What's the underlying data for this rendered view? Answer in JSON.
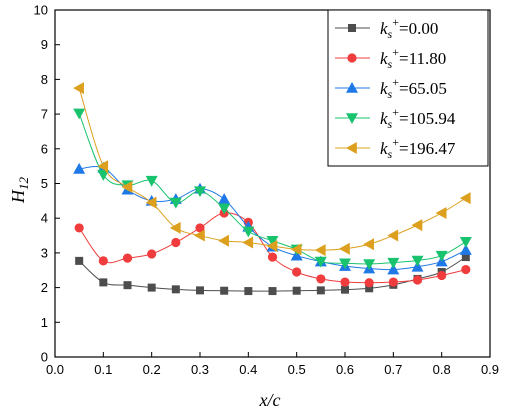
{
  "chart_data": {
    "type": "line",
    "xlabel": "x/c",
    "ylabel": "H12",
    "xlim": [
      0.0,
      0.9
    ],
    "ylim": [
      0,
      10
    ],
    "xticks": [
      "0.0",
      "0.1",
      "0.2",
      "0.3",
      "0.4",
      "0.5",
      "0.6",
      "0.7",
      "0.8",
      "0.9"
    ],
    "yticks": [
      "0",
      "1",
      "2",
      "3",
      "4",
      "5",
      "6",
      "7",
      "8",
      "9",
      "10"
    ],
    "grid": false,
    "legend_position": "top-right",
    "series": [
      {
        "name": "ks+=0.00",
        "legend_value": "=0.00",
        "color": "#4d4d4d",
        "marker": "square",
        "x": [
          0.05,
          0.1,
          0.15,
          0.2,
          0.25,
          0.3,
          0.35,
          0.4,
          0.45,
          0.5,
          0.55,
          0.6,
          0.65,
          0.7,
          0.75,
          0.8,
          0.85
        ],
        "y": [
          2.77,
          2.15,
          2.07,
          2.0,
          1.95,
          1.92,
          1.91,
          1.9,
          1.9,
          1.91,
          1.92,
          1.94,
          1.98,
          2.08,
          2.25,
          2.45,
          2.88
        ]
      },
      {
        "name": "ks+=11.80",
        "legend_value": "=11.80",
        "color": "#f03c3c",
        "marker": "circle",
        "x": [
          0.05,
          0.1,
          0.15,
          0.2,
          0.25,
          0.3,
          0.35,
          0.4,
          0.45,
          0.5,
          0.55,
          0.6,
          0.65,
          0.7,
          0.75,
          0.8,
          0.85
        ],
        "y": [
          3.72,
          2.77,
          2.85,
          2.97,
          3.3,
          3.72,
          4.15,
          3.88,
          2.88,
          2.45,
          2.25,
          2.16,
          2.14,
          2.16,
          2.22,
          2.35,
          2.52
        ]
      },
      {
        "name": "ks+=65.05",
        "legend_value": "=65.05",
        "color": "#1e78e6",
        "marker": "triangle-up",
        "x": [
          0.05,
          0.1,
          0.15,
          0.2,
          0.25,
          0.3,
          0.35,
          0.4,
          0.45,
          0.5,
          0.55,
          0.6,
          0.65,
          0.7,
          0.75,
          0.8,
          0.85
        ],
        "y": [
          5.42,
          5.45,
          4.82,
          4.5,
          4.55,
          4.85,
          4.55,
          3.75,
          3.18,
          2.92,
          2.75,
          2.62,
          2.55,
          2.52,
          2.6,
          2.75,
          3.08
        ]
      },
      {
        "name": "ks+=105.94",
        "legend_value": "=105.94",
        "color": "#19c36e",
        "marker": "triangle-down",
        "x": [
          0.05,
          0.1,
          0.15,
          0.2,
          0.25,
          0.3,
          0.35,
          0.4,
          0.45,
          0.5,
          0.55,
          0.6,
          0.65,
          0.7,
          0.75,
          0.8,
          0.85
        ],
        "y": [
          7.02,
          5.25,
          4.95,
          5.08,
          4.45,
          4.78,
          4.28,
          3.62,
          3.35,
          3.1,
          2.75,
          2.7,
          2.68,
          2.72,
          2.78,
          2.92,
          3.32
        ]
      },
      {
        "name": "ks+=196.47",
        "legend_value": "=196.47",
        "color": "#dca01e",
        "marker": "triangle-left",
        "x": [
          0.05,
          0.1,
          0.15,
          0.2,
          0.25,
          0.3,
          0.35,
          0.4,
          0.45,
          0.5,
          0.55,
          0.6,
          0.65,
          0.7,
          0.75,
          0.8,
          0.85
        ],
        "y": [
          7.75,
          5.5,
          4.9,
          4.45,
          3.72,
          3.5,
          3.35,
          3.3,
          3.2,
          3.1,
          3.08,
          3.12,
          3.25,
          3.5,
          3.8,
          4.15,
          4.58
        ]
      }
    ]
  }
}
